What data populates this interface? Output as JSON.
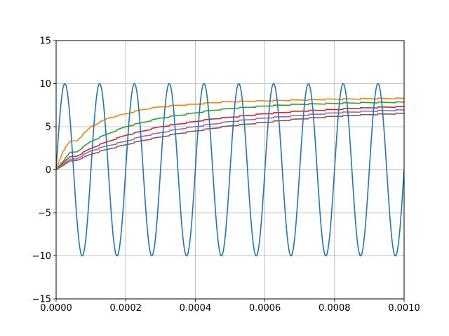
{
  "chart_data": {
    "type": "line",
    "title": "",
    "xlabel": "",
    "ylabel": "",
    "xlim": [
      0,
      0.001
    ],
    "ylim": [
      -15,
      15
    ],
    "grid": true,
    "legend": "none",
    "x_ticks": [
      0,
      0.0002,
      0.0004,
      0.0006,
      0.0008,
      0.001
    ],
    "x_tick_labels": [
      "0.0000",
      "0.0002",
      "0.0004",
      "0.0006",
      "0.0008",
      "0.0010"
    ],
    "y_ticks": [
      -15,
      -10,
      -5,
      0,
      5,
      10,
      15
    ],
    "y_tick_labels": [
      "−15",
      "−10",
      "−5",
      "0",
      "5",
      "10",
      "15"
    ],
    "series": [
      {
        "color": "#1f77b4",
        "description": "sine wave, amplitude 10, frequency 10 kHz",
        "x": [
          0,
          2.5e-05,
          5e-05,
          7.5e-05,
          0.0001,
          0.000125,
          0.00015,
          0.000175,
          0.0002,
          0.000225,
          0.00025,
          0.000275,
          0.0003,
          0.000325,
          0.00035,
          0.000375,
          0.0004,
          0.000425,
          0.00045,
          0.000475,
          0.0005,
          0.000525,
          0.00055,
          0.000575,
          0.0006,
          0.000625,
          0.00065,
          0.000675,
          0.0007,
          0.000725,
          0.00075,
          0.000775,
          0.0008,
          0.000825,
          0.00085,
          0.000875,
          0.0009,
          0.000925,
          0.00095,
          0.000975,
          0.001
        ],
        "y": [
          0,
          10,
          0,
          -10,
          0,
          10,
          0,
          -10,
          0,
          10,
          0,
          -10,
          0,
          10,
          0,
          -10,
          0,
          10,
          0,
          -10,
          0,
          10,
          0,
          -10,
          0,
          10,
          0,
          -10,
          0,
          10,
          0,
          -10,
          0,
          10,
          0,
          -10,
          0,
          10,
          0,
          -10,
          0
        ]
      },
      {
        "color": "#ff7f0e",
        "x": [
          0,
          2e-05,
          4e-05,
          6e-05,
          0.0001,
          0.00015,
          0.0002,
          0.00025,
          0.0003,
          0.00035,
          0.0004,
          0.00045,
          0.0005,
          0.0006,
          0.0007,
          0.0008,
          0.0009,
          0.001
        ],
        "y": [
          0,
          2.2,
          3.3,
          3.4,
          5.0,
          6.0,
          6.5,
          7.0,
          7.3,
          7.5,
          7.6,
          7.8,
          7.9,
          8.0,
          8.1,
          8.2,
          8.25,
          8.3
        ]
      },
      {
        "color": "#2ca02c",
        "x": [
          0,
          2e-05,
          4e-05,
          6e-05,
          0.0001,
          0.00015,
          0.0002,
          0.00025,
          0.0003,
          0.00035,
          0.0004,
          0.00045,
          0.0005,
          0.0006,
          0.0007,
          0.0008,
          0.0009,
          0.001
        ],
        "y": [
          0,
          1.0,
          2.0,
          2.1,
          3.3,
          4.2,
          5.0,
          5.5,
          6.0,
          6.3,
          6.6,
          6.9,
          7.1,
          7.4,
          7.6,
          7.7,
          7.8,
          7.85
        ]
      },
      {
        "color": "#d62728",
        "x": [
          0,
          2e-05,
          4e-05,
          6e-05,
          0.0001,
          0.00015,
          0.0002,
          0.00025,
          0.0003,
          0.00035,
          0.0004,
          0.00045,
          0.0005,
          0.0006,
          0.0007,
          0.0008,
          0.0009,
          0.001
        ],
        "y": [
          0,
          0.8,
          1.5,
          1.6,
          2.5,
          3.3,
          4.0,
          4.5,
          5.0,
          5.3,
          5.6,
          5.9,
          6.1,
          6.5,
          6.8,
          7.0,
          7.2,
          7.35
        ]
      },
      {
        "color": "#9467bd",
        "x": [
          0,
          2e-05,
          4e-05,
          6e-05,
          0.0001,
          0.00015,
          0.0002,
          0.00025,
          0.0003,
          0.00035,
          0.0004,
          0.00045,
          0.0005,
          0.0006,
          0.0007,
          0.0008,
          0.0009,
          0.001
        ],
        "y": [
          0,
          0.6,
          1.2,
          1.3,
          2.2,
          2.8,
          3.3,
          3.9,
          4.3,
          4.7,
          5.0,
          5.3,
          5.6,
          6.0,
          6.3,
          6.6,
          6.8,
          6.95
        ]
      },
      {
        "color": "#8c564b",
        "x": [
          0,
          2e-05,
          4e-05,
          6e-05,
          0.0001,
          0.00015,
          0.0002,
          0.00025,
          0.0003,
          0.00035,
          0.0004,
          0.00045,
          0.0005,
          0.0006,
          0.0007,
          0.0008,
          0.0009,
          0.001
        ],
        "y": [
          0,
          0.5,
          1.0,
          1.1,
          1.8,
          2.4,
          2.9,
          3.4,
          3.8,
          4.2,
          4.5,
          4.8,
          5.1,
          5.5,
          5.9,
          6.2,
          6.4,
          6.55
        ]
      }
    ]
  }
}
